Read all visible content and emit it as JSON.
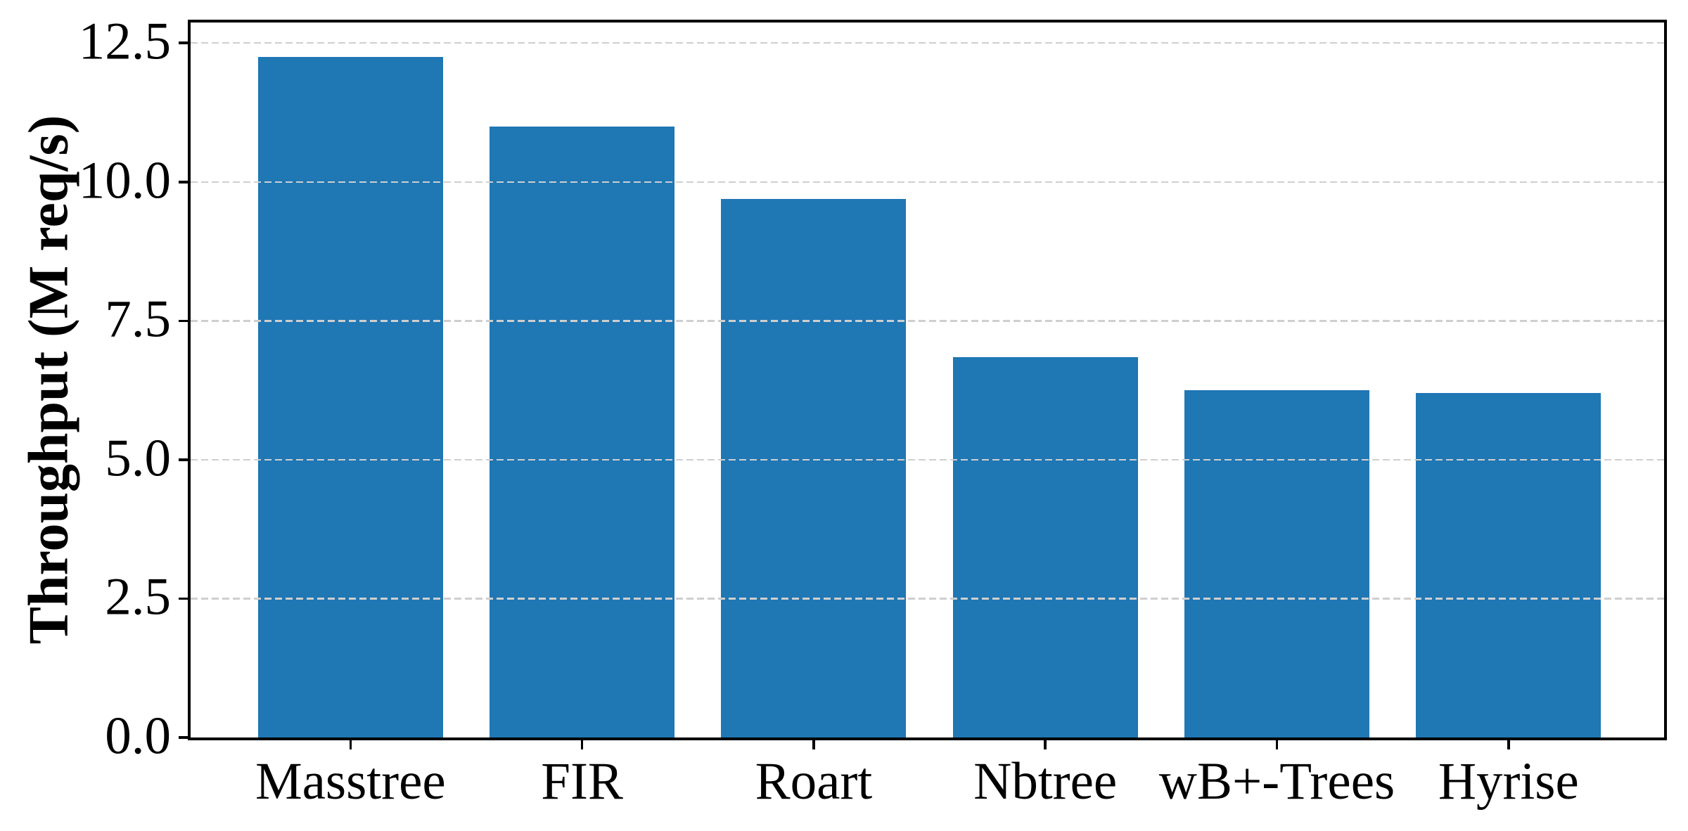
{
  "figure": {
    "kind": "matplotlib-style bar chart screenshot"
  },
  "chart_data": {
    "type": "bar",
    "title": "",
    "xlabel": "",
    "ylabel": "Throughput (M req/s)",
    "categories": [
      "Masstree",
      "FIR",
      "Roart",
      "Nbtree",
      "wB+-Trees",
      "Hyrise"
    ],
    "values": [
      12.25,
      11.0,
      9.7,
      6.85,
      6.25,
      6.2
    ],
    "ylim": [
      0,
      12.87
    ],
    "yticks": [
      0,
      2.5,
      5,
      7.5,
      10,
      12.5
    ],
    "ytick_labels": [
      "0.0",
      "2.5",
      "5.0",
      "7.5",
      "10.0",
      "12.5"
    ],
    "grid": "horizontal-dashed-above-bars",
    "legend": "none",
    "bar_color": "#1f77b4",
    "grid_color": "#cfcfcf",
    "axis_color": "#000000"
  }
}
